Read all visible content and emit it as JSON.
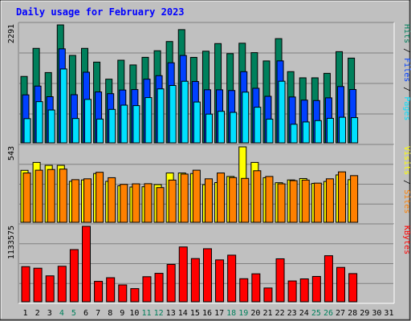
{
  "chart_data": {
    "type": "bar",
    "title": "Daily usage for February 2023",
    "days": [
      "1",
      "2",
      "3",
      "4",
      "5",
      "6",
      "7",
      "8",
      "9",
      "10",
      "11",
      "12",
      "13",
      "14",
      "15",
      "16",
      "17",
      "18",
      "19",
      "20",
      "21",
      "22",
      "23",
      "24",
      "25",
      "26",
      "27",
      "28",
      "29",
      "30",
      "31"
    ],
    "weekend_days": [
      "4",
      "5",
      "11",
      "12",
      "18",
      "19",
      "25",
      "26"
    ],
    "colors": {
      "title": "#0000ff",
      "background": "#c0c0c0",
      "weekday_label": "#000000",
      "weekend_label": "#00805c",
      "hits": "#00805c",
      "files": "#0040ff",
      "pages": "#00e0ff",
      "visits": "#ffff00",
      "sites": "#ff8000",
      "kbytes": "#ff0000"
    },
    "panels": [
      {
        "max_label": "2291",
        "ylim": [
          0,
          2291
        ],
        "legend": [
          {
            "text": "Hits",
            "color": "#00805c"
          },
          {
            "text": "Files",
            "color": "#0040ff"
          },
          {
            "text": "Pages",
            "color": "#00e0ff"
          }
        ],
        "series": [
          {
            "name": "Hits",
            "color": "#00805c",
            "values": [
              1290,
              1835,
              1365,
              2291,
              1698,
              1835,
              1568,
              1237,
              1605,
              1513,
              1661,
              1789,
              1968,
              2199,
              1660,
              1780,
              1928,
              1733,
              1935,
              1752,
              1591,
              2024,
              1383,
              1263,
              1263,
              1350,
              1771,
              1646
            ]
          },
          {
            "name": "Files",
            "color": "#0040ff",
            "values": [
              932,
              1103,
              896,
              1826,
              935,
              1372,
              989,
              955,
              1026,
              1035,
              1237,
              1305,
              1555,
              1697,
              1192,
              1031,
              1030,
              1017,
              1382,
              1060,
              904,
              1592,
              891,
              830,
              822,
              874,
              1094,
              1036
            ]
          },
          {
            "name": "Pages",
            "color": "#00e0ff",
            "values": [
              470,
              800,
              638,
              1435,
              473,
              844,
              462,
              650,
              732,
              723,
              879,
              1048,
              1114,
              1196,
              793,
              558,
              613,
              592,
              985,
              692,
              461,
              1197,
              361,
              406,
              432,
              476,
              497,
              490
            ]
          }
        ]
      },
      {
        "max_label": "543",
        "ylim": [
          0,
          543
        ],
        "legend": [
          {
            "text": "Visits",
            "color": "#ffff00"
          },
          {
            "text": "Sites",
            "color": "#ff8000"
          }
        ],
        "series": [
          {
            "name": "Visits",
            "color": "#ffff00",
            "values": [
              374,
              431,
              410,
              410,
              295,
              305,
              351,
              295,
              263,
              254,
              256,
              271,
              355,
              355,
              351,
              271,
              286,
              330,
              543,
              431,
              321,
              285,
              305,
              315,
              280,
              294,
              341,
              307
            ]
          },
          {
            "name": "Sites",
            "color": "#ff8000",
            "values": [
              355,
              375,
              380,
              383,
              307,
              313,
              360,
              321,
              273,
              277,
              278,
              250,
              304,
              347,
              375,
              313,
              355,
              322,
              316,
              371,
              330,
              277,
              300,
              304,
              282,
              313,
              363,
              336
            ]
          }
        ]
      },
      {
        "max_label": "1133575",
        "ylim": [
          0,
          1133575
        ],
        "legend": [
          {
            "text": "KBytes",
            "color": "#ff0000"
          }
        ],
        "series": [
          {
            "name": "KBytes",
            "color": "#ff0000",
            "values": [
              527400,
              504000,
              389200,
              533400,
              784000,
              1133575,
              306700,
              361300,
              253200,
              197400,
              376400,
              427300,
              561400,
              823300,
              648900,
              796800,
              629000,
              700100,
              346300,
              420100,
              206900,
              645500,
              312700,
              343600,
              380400,
              691700,
              516000,
              423300
            ]
          }
        ]
      }
    ]
  }
}
